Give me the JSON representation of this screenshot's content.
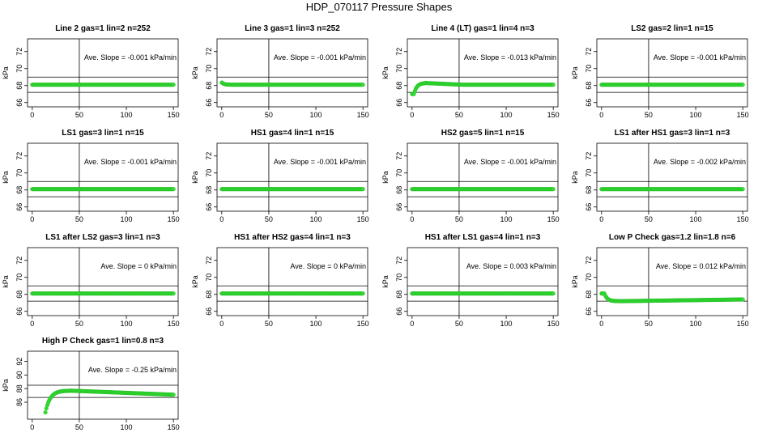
{
  "figure": {
    "title": "HDP_070117  Pressure Shapes"
  },
  "colors": {
    "points": "#33dd33",
    "points_stroke": "#22bb22",
    "lines": "#000000"
  },
  "chart_data": [
    {
      "type": "scatter",
      "title": "Line 2 gas=1 lin=2 n=252",
      "ylabel": "kPa",
      "annotation": "Ave. Slope =  -0.001  kPa/min",
      "xlim": [
        -5,
        155
      ],
      "ylim": [
        65.5,
        73.5
      ],
      "xticks": [
        0,
        50,
        100,
        150
      ],
      "yticks": [
        66,
        68,
        70,
        72
      ],
      "hlines": [
        67.2,
        69.0
      ],
      "vline": 50,
      "shape": "flat",
      "level": 68.1
    },
    {
      "type": "scatter",
      "title": "Line 3 gas=1 lin=3 n=252",
      "ylabel": "kPa",
      "annotation": "Ave. Slope =  -0.001  kPa/min",
      "xlim": [
        -5,
        155
      ],
      "ylim": [
        65.5,
        73.5
      ],
      "xticks": [
        0,
        50,
        100,
        150
      ],
      "yticks": [
        66,
        68,
        70,
        72
      ],
      "hlines": [
        67.2,
        69.0
      ],
      "vline": 50,
      "shape": "settle",
      "level": 68.1,
      "start": 68.35
    },
    {
      "type": "scatter",
      "title": "Line 4 (LT) gas=1 lin=4 n=3",
      "ylabel": "kPa",
      "annotation": "Ave. Slope =  -0.013  kPa/min",
      "xlim": [
        -5,
        155
      ],
      "ylim": [
        65.5,
        73.5
      ],
      "xticks": [
        0,
        50,
        100,
        150
      ],
      "yticks": [
        66,
        68,
        70,
        72
      ],
      "hlines": [
        67.2,
        69.0
      ],
      "vline": 50,
      "shape": "rise",
      "level": 68.1,
      "start": 67.0,
      "peak": 68.3
    },
    {
      "type": "scatter",
      "title": "LS2 gas=2 lin=1 n=15",
      "ylabel": "kPa",
      "annotation": "Ave. Slope =  -0.001  kPa/min",
      "xlim": [
        -5,
        155
      ],
      "ylim": [
        65.5,
        73.5
      ],
      "xticks": [
        0,
        50,
        100,
        150
      ],
      "yticks": [
        66,
        68,
        70,
        72
      ],
      "hlines": [
        67.2,
        69.0
      ],
      "vline": 50,
      "shape": "flat",
      "level": 68.1
    },
    {
      "type": "scatter",
      "title": "LS1 gas=3 lin=1 n=15",
      "ylabel": "kPa",
      "annotation": "Ave. Slope =  -0.001  kPa/min",
      "xlim": [
        -5,
        155
      ],
      "ylim": [
        65.5,
        73.5
      ],
      "xticks": [
        0,
        50,
        100,
        150
      ],
      "yticks": [
        66,
        68,
        70,
        72
      ],
      "hlines": [
        67.2,
        69.0
      ],
      "vline": 50,
      "shape": "flat",
      "level": 68.1
    },
    {
      "type": "scatter",
      "title": "HS1 gas=4 lin=1 n=15",
      "ylabel": "kPa",
      "annotation": "Ave. Slope =  -0.001  kPa/min",
      "xlim": [
        -5,
        155
      ],
      "ylim": [
        65.5,
        73.5
      ],
      "xticks": [
        0,
        50,
        100,
        150
      ],
      "yticks": [
        66,
        68,
        70,
        72
      ],
      "hlines": [
        67.2,
        69.0
      ],
      "vline": 50,
      "shape": "flat",
      "level": 68.1
    },
    {
      "type": "scatter",
      "title": "HS2 gas=5 lin=1 n=15",
      "ylabel": "kPa",
      "annotation": "Ave. Slope =  -0.001  kPa/min",
      "xlim": [
        -5,
        155
      ],
      "ylim": [
        65.5,
        73.5
      ],
      "xticks": [
        0,
        50,
        100,
        150
      ],
      "yticks": [
        66,
        68,
        70,
        72
      ],
      "hlines": [
        67.2,
        69.0
      ],
      "vline": 50,
      "shape": "flat",
      "level": 68.1
    },
    {
      "type": "scatter",
      "title": "LS1 after HS1 gas=3 lin=1 n=3",
      "ylabel": "kPa",
      "annotation": "Ave. Slope =  -0.002  kPa/min",
      "xlim": [
        -5,
        155
      ],
      "ylim": [
        65.5,
        73.5
      ],
      "xticks": [
        0,
        50,
        100,
        150
      ],
      "yticks": [
        66,
        68,
        70,
        72
      ],
      "hlines": [
        67.2,
        69.0
      ],
      "vline": 50,
      "shape": "flat",
      "level": 68.1
    },
    {
      "type": "scatter",
      "title": "LS1 after LS2 gas=3 lin=1 n=3",
      "ylabel": "kPa",
      "annotation": "Ave. Slope =  0  kPa/min",
      "xlim": [
        -5,
        155
      ],
      "ylim": [
        65.5,
        73.5
      ],
      "xticks": [
        0,
        50,
        100,
        150
      ],
      "yticks": [
        66,
        68,
        70,
        72
      ],
      "hlines": [
        67.2,
        69.0
      ],
      "vline": 50,
      "shape": "flat",
      "level": 68.1
    },
    {
      "type": "scatter",
      "title": "HS1 after HS2 gas=4 lin=1 n=3",
      "ylabel": "kPa",
      "annotation": "Ave. Slope =  0  kPa/min",
      "xlim": [
        -5,
        155
      ],
      "ylim": [
        65.5,
        73.5
      ],
      "xticks": [
        0,
        50,
        100,
        150
      ],
      "yticks": [
        66,
        68,
        70,
        72
      ],
      "hlines": [
        67.2,
        69.0
      ],
      "vline": 50,
      "shape": "flat",
      "level": 68.1
    },
    {
      "type": "scatter",
      "title": "HS1 after LS1 gas=4 lin=1 n=3",
      "ylabel": "kPa",
      "annotation": "Ave. Slope =  0.003  kPa/min",
      "xlim": [
        -5,
        155
      ],
      "ylim": [
        65.5,
        73.5
      ],
      "xticks": [
        0,
        50,
        100,
        150
      ],
      "yticks": [
        66,
        68,
        70,
        72
      ],
      "hlines": [
        67.2,
        69.0
      ],
      "vline": 50,
      "shape": "flat",
      "level": 68.1
    },
    {
      "type": "scatter",
      "title": "Low P Check gas=1.2 lin=1.8 n=6",
      "ylabel": "kPa",
      "annotation": "Ave. Slope =  0.012  kPa/min",
      "xlim": [
        -5,
        155
      ],
      "ylim": [
        65.5,
        73.5
      ],
      "xticks": [
        0,
        50,
        100,
        150
      ],
      "yticks": [
        66,
        68,
        70,
        72
      ],
      "hlines": [
        67.2,
        69.0
      ],
      "vline": 50,
      "shape": "drop",
      "level": 67.2,
      "start": 68.1,
      "end": 67.4
    },
    {
      "type": "scatter",
      "title": "High P Check gas=1 lin=0.8 n=3",
      "ylabel": "kPa",
      "annotation": "Ave. Slope =  -0.25  kPa/min",
      "xlim": [
        -5,
        155
      ],
      "ylim": [
        83.5,
        93.5
      ],
      "xticks": [
        0,
        50,
        100,
        150
      ],
      "yticks": [
        86,
        88,
        90,
        92
      ],
      "hlines": [
        86.7,
        88.5
      ],
      "vline": 50,
      "shape": "peak",
      "x0": 14,
      "start": 84.5,
      "peak": 87.7,
      "peak_x": 40,
      "end": 87.1
    }
  ]
}
